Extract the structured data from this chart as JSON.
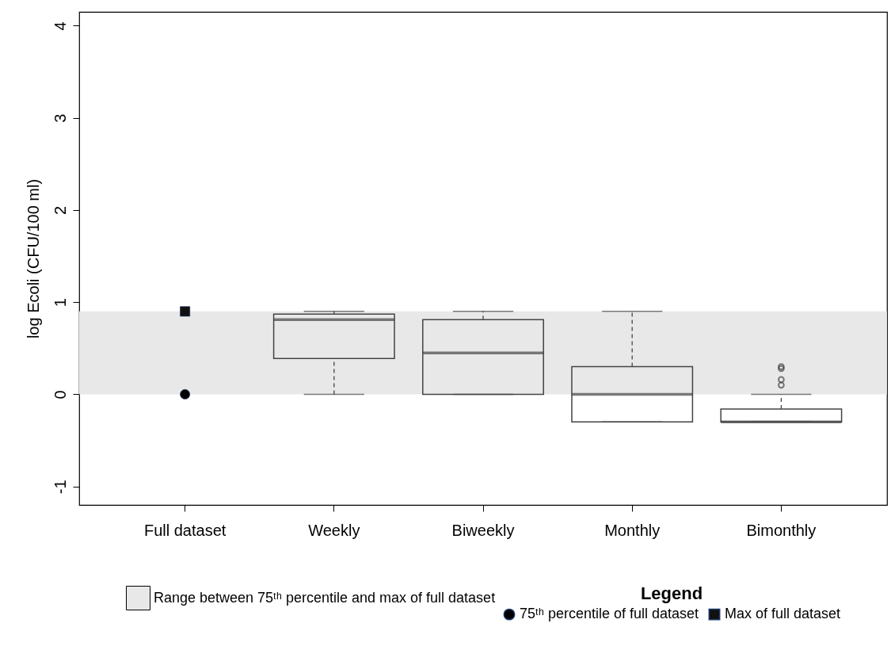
{
  "chart_data": {
    "type": "box",
    "ylabel": "log Ecoli (CFU/100 ml)",
    "legend_title": "Legend",
    "legend": "bottom",
    "grid": false,
    "categories": [
      "Full dataset",
      "Weekly",
      "Biweekly",
      "Monthly",
      "Bimonthly"
    ],
    "boxes": [
      null,
      {
        "low": 0,
        "q1": 0.39,
        "median": 0.81,
        "q3": 0.87,
        "high": 0.9
      },
      {
        "low": 0,
        "q1": 0,
        "median": 0.45,
        "q3": 0.81,
        "high": 0.9
      },
      {
        "low": -0.3,
        "q1": -0.3,
        "median": 0,
        "q3": 0.3,
        "high": 0.9
      },
      {
        "low": -0.3,
        "q1": -0.3,
        "median": -0.3,
        "q3": -0.16,
        "high": 0,
        "outliers": [
          0.3,
          0.28,
          0.16,
          0.1
        ]
      }
    ],
    "series": [
      {
        "name": "75ᵗʰ percentile of full dataset",
        "type": "scatter",
        "marker": "circle",
        "color": "#000000",
        "x": [
          "Full dataset"
        ],
        "values": [
          0
        ]
      },
      {
        "name": "Max of full dataset",
        "type": "scatter",
        "marker": "square",
        "color": "#111111",
        "x": [
          "Full dataset"
        ],
        "values": [
          0.9
        ]
      }
    ],
    "bands": [
      {
        "axis": "y",
        "from": 0,
        "to": 0.9,
        "label": "Range between 75ᵗʰ percentile and max of full dataset",
        "color": "#e8e8e8"
      }
    ],
    "color": "#444444",
    "ylim": [
      -1.2,
      4.15
    ],
    "yticks": [
      -1,
      0,
      1,
      2,
      3,
      4
    ]
  }
}
